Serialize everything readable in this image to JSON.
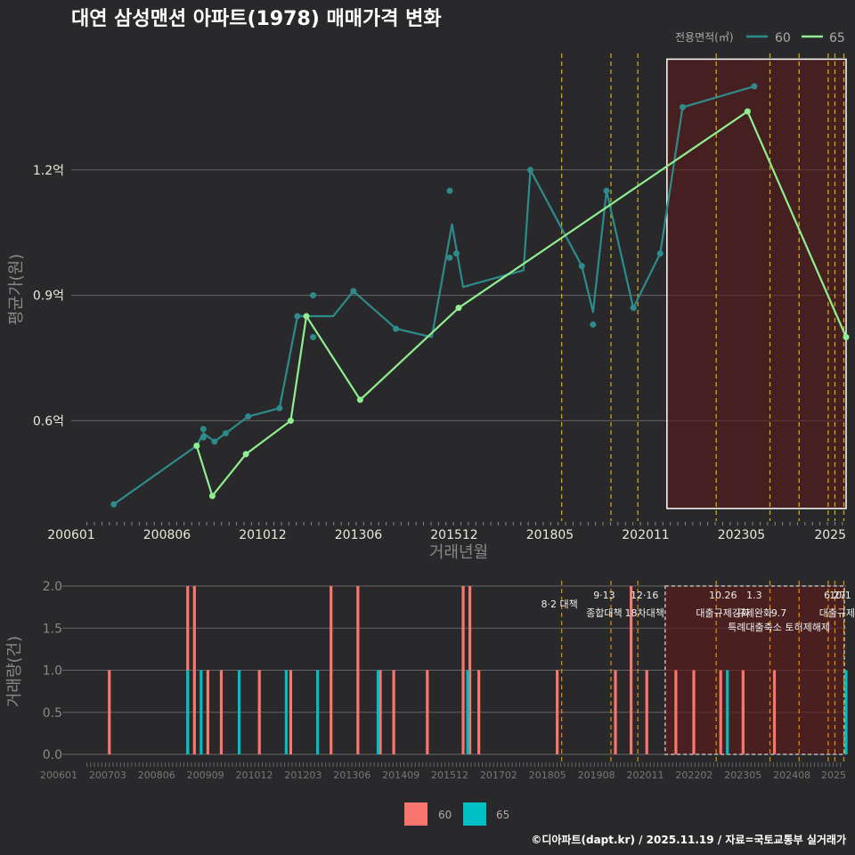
{
  "colors": {
    "background": "#29292b",
    "series60": "#2e8b8b",
    "series65": "#90ee90",
    "bar60": "#f8766d",
    "bar65": "#00bfc4",
    "policy_line": "#ffd700",
    "highlight_fill": "#5a1a1a",
    "grid": "#666666"
  },
  "chart_data": [
    {
      "type": "line",
      "title": "대연 삼성맨션 아파트(1978) 매매가격 변화",
      "xlabel": "거래년월",
      "ylabel": "평균가(원)",
      "ylim": [
        0.36,
        1.5
      ],
      "y_ticks": [
        {
          "value": 0.6,
          "label": "0.6억"
        },
        {
          "value": 0.9,
          "label": "0.9억"
        },
        {
          "value": 1.2,
          "label": "1.2억"
        }
      ],
      "x_ticks": [
        "200601",
        "200806",
        "201012",
        "201306",
        "201512",
        "201805",
        "202011",
        "202305",
        "2025"
      ],
      "legend_title": "전용면적(㎡)",
      "legend_position": "top-right",
      "series": [
        {
          "name": "60",
          "line": [
            [
              2006.6,
              0.4
            ],
            [
              2008.45,
              0.54
            ],
            [
              2008.6,
              0.57
            ],
            [
              2008.85,
              0.55
            ],
            [
              2009.1,
              0.57
            ],
            [
              2009.6,
              0.61
            ],
            [
              2010.3,
              0.63
            ],
            [
              2010.7,
              0.85
            ],
            [
              2011.5,
              0.85
            ],
            [
              2011.95,
              0.91
            ],
            [
              2012.9,
              0.82
            ],
            [
              2013.7,
              0.8
            ],
            [
              2014.15,
              1.07
            ],
            [
              2014.4,
              0.92
            ],
            [
              2015.75,
              0.96
            ],
            [
              2015.9,
              1.2
            ],
            [
              2017.05,
              0.97
            ],
            [
              2017.3,
              0.86
            ],
            [
              2017.6,
              1.15
            ],
            [
              2018.2,
              0.87
            ],
            [
              2018.8,
              1.0
            ],
            [
              2019.3,
              1.35
            ],
            [
              2020.9,
              1.4
            ]
          ],
          "points": [
            [
              2006.6,
              0.4
            ],
            [
              2008.45,
              0.54
            ],
            [
              2008.6,
              0.56
            ],
            [
              2008.6,
              0.58
            ],
            [
              2008.85,
              0.55
            ],
            [
              2009.1,
              0.57
            ],
            [
              2009.6,
              0.61
            ],
            [
              2010.3,
              0.63
            ],
            [
              2010.7,
              0.85
            ],
            [
              2011.05,
              0.9
            ],
            [
              2011.05,
              0.8
            ],
            [
              2011.95,
              0.91
            ],
            [
              2012.9,
              0.82
            ],
            [
              2014.1,
              1.15
            ],
            [
              2014.1,
              0.99
            ],
            [
              2014.25,
              1.0
            ],
            [
              2015.9,
              1.2
            ],
            [
              2017.05,
              0.97
            ],
            [
              2017.3,
              0.83
            ],
            [
              2017.6,
              1.15
            ],
            [
              2018.2,
              0.87
            ],
            [
              2018.8,
              1.0
            ],
            [
              2019.3,
              1.35
            ],
            [
              2020.9,
              1.4
            ]
          ]
        },
        {
          "name": "65",
          "line": [
            [
              2008.45,
              0.54
            ],
            [
              2008.8,
              0.42
            ],
            [
              2009.55,
              0.52
            ],
            [
              2010.55,
              0.6
            ],
            [
              2010.9,
              0.85
            ],
            [
              2012.1,
              0.65
            ],
            [
              2014.3,
              0.87
            ],
            [
              2020.75,
              1.34
            ],
            [
              2022.95,
              0.8
            ]
          ],
          "points": [
            [
              2008.45,
              0.54
            ],
            [
              2008.8,
              0.42
            ],
            [
              2009.55,
              0.52
            ],
            [
              2010.55,
              0.6
            ],
            [
              2010.9,
              0.85
            ],
            [
              2012.1,
              0.65
            ],
            [
              2014.3,
              0.87
            ],
            [
              2020.75,
              1.34
            ],
            [
              2022.95,
              0.8
            ]
          ]
        }
      ],
      "policy_lines": [
        2016.6,
        2017.7,
        2018.3,
        2020.05,
        2021.25,
        2021.9,
        2022.55,
        2022.7,
        2022.9
      ],
      "highlight_range": [
        2018.95,
        2022.95
      ]
    },
    {
      "type": "bar",
      "ylabel": "거래량(건)",
      "ylim": [
        0,
        2.0
      ],
      "y_ticks": [
        {
          "value": 0,
          "label": "0.0"
        },
        {
          "value": 0.5,
          "label": "0.5"
        },
        {
          "value": 1.0,
          "label": "1.0"
        },
        {
          "value": 1.5,
          "label": "1.5"
        },
        {
          "value": 2.0,
          "label": "2.0"
        }
      ],
      "x_ticks": [
        "200601",
        "200703",
        "200806",
        "200909",
        "201012",
        "201203",
        "201306",
        "201409",
        "201512",
        "201702",
        "201805",
        "201908",
        "202011",
        "202202",
        "202305",
        "202408",
        "2025"
      ],
      "series": [
        {
          "name": "60",
          "x": [
            2006.5,
            2008.25,
            2008.4,
            2008.7,
            2009.0,
            2009.85,
            2010.55,
            2011.45,
            2012.05,
            2012.55,
            2012.85,
            2013.6,
            2014.4,
            2014.55,
            2014.75,
            2016.5,
            2017.8,
            2018.15,
            2018.5,
            2019.15,
            2019.55,
            2020.15,
            2020.65,
            2021.35
          ],
          "values": [
            1,
            2,
            2,
            1,
            1,
            1,
            1,
            2,
            2,
            1,
            1,
            1,
            2,
            2,
            1,
            1,
            1,
            2,
            1,
            1,
            1,
            1,
            1,
            1
          ]
        },
        {
          "name": "65",
          "x": [
            2008.25,
            2008.55,
            2009.4,
            2010.45,
            2011.15,
            2012.5,
            2014.5,
            2020.3,
            2022.95
          ],
          "values": [
            1,
            1,
            1,
            1,
            1,
            1,
            1,
            1,
            1
          ]
        }
      ],
      "policy_lines": [
        2016.6,
        2017.7,
        2018.3,
        2020.05,
        2021.25,
        2021.9,
        2022.55,
        2022.7,
        2022.9
      ],
      "highlight_range": [
        2018.95,
        2022.95
      ],
      "annotations": [
        {
          "x": 2016.55,
          "row": 1,
          "text": "8·2 대책"
        },
        {
          "x": 2017.55,
          "row": 0,
          "text": "9·13"
        },
        {
          "x": 2017.55,
          "row": 2,
          "text": "종합대책"
        },
        {
          "x": 2018.45,
          "row": 0,
          "text": "12·16"
        },
        {
          "x": 2018.45,
          "row": 2,
          "text": "18차대책"
        },
        {
          "x": 2020.2,
          "row": 0,
          "text": "10.26"
        },
        {
          "x": 2020.2,
          "row": 2,
          "text": "대출규제강화"
        },
        {
          "x": 2020.9,
          "row": 0,
          "text": "1.3"
        },
        {
          "x": 2020.9,
          "row": 2,
          "text": "규제완화"
        },
        {
          "x": 2021.45,
          "row": 2,
          "text": "9.7"
        },
        {
          "x": 2021.45,
          "row": 3,
          "text": "특례대출축소 토허제해제"
        },
        {
          "x": 2022.7,
          "row": 0,
          "text": "6.27"
        },
        {
          "x": 2022.82,
          "row": 0,
          "text": "10.1"
        },
        {
          "x": 2022.75,
          "row": 2,
          "text": "대출규제"
        }
      ]
    }
  ],
  "legend_bottom": [
    {
      "label": "60"
    },
    {
      "label": "65"
    }
  ],
  "footer": "©디아파트(dapt.kr) / 2025.11.19 / 자료=국토교통부 실거래가"
}
